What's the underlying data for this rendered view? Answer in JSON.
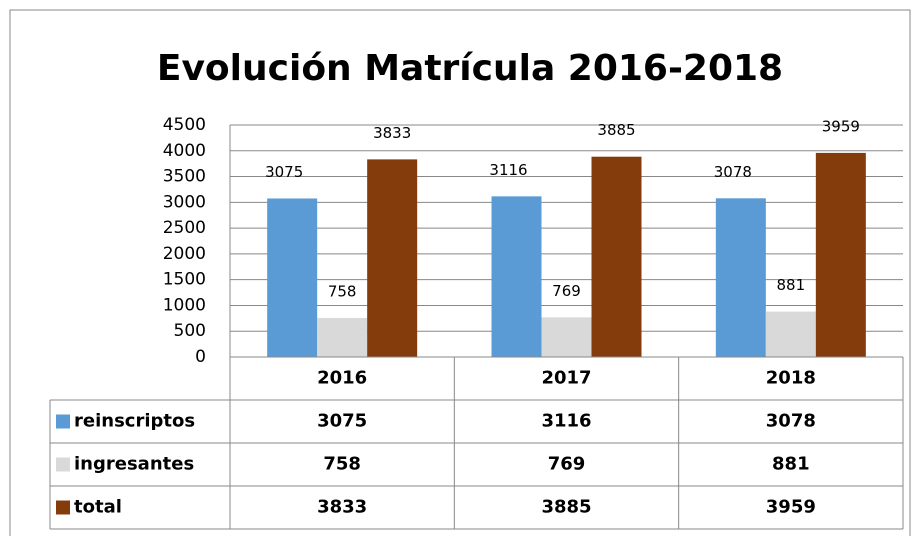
{
  "chart_data": {
    "type": "bar",
    "title": "Evolución Matrícula 2016-2018",
    "categories": [
      "2016",
      "2017",
      "2018"
    ],
    "series": [
      {
        "name": "reinscriptos",
        "color": "#5b9bd5",
        "values": [
          3075,
          3116,
          3078
        ]
      },
      {
        "name": "ingresantes",
        "color": "#d9d9d9",
        "values": [
          758,
          769,
          881
        ]
      },
      {
        "name": "total",
        "color": "#843c0c",
        "values": [
          3833,
          3885,
          3959
        ]
      }
    ],
    "ylim": [
      0,
      4500
    ],
    "yticks": [
      0,
      500,
      1000,
      1500,
      2000,
      2500,
      3000,
      3500,
      4000,
      4500
    ],
    "grid": true,
    "data_table": true
  }
}
